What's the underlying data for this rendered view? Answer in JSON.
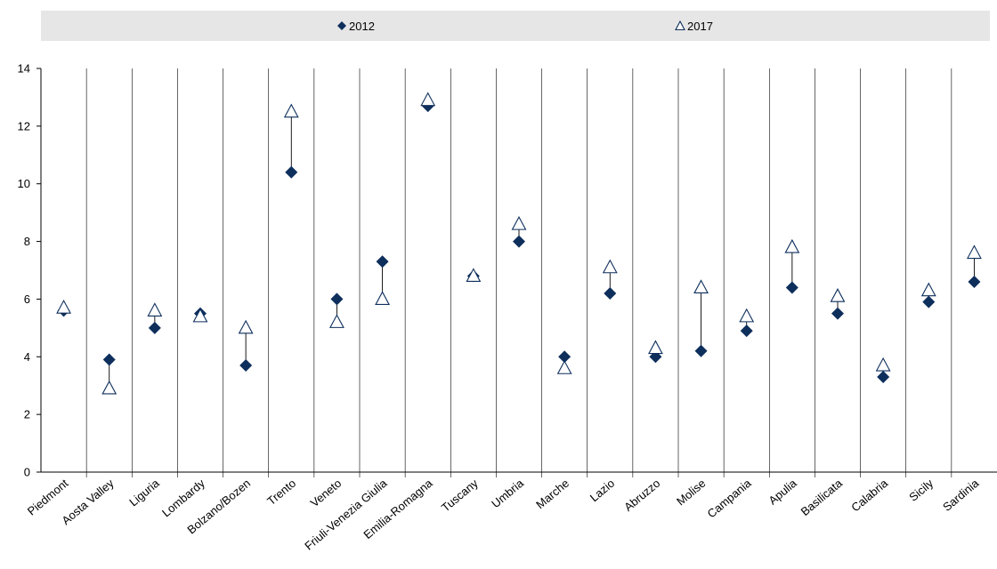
{
  "chart_data": {
    "type": "scatter",
    "title": "",
    "xlabel": "",
    "ylabel": "",
    "ylim": [
      0,
      14
    ],
    "yticks": [
      0,
      2,
      4,
      6,
      8,
      10,
      12,
      14
    ],
    "grid": false,
    "legend_position": "top",
    "categories": [
      "Piedmont",
      "Aosta Valley",
      "Liguria",
      "Lombardy",
      "Bolzano/Bozen",
      "Trento",
      "Veneto",
      "Friuli-Venezia Giulia",
      "Emilia-Romagna",
      "Tuscany",
      "Umbria",
      "Marche",
      "Lazio",
      "Abruzzo",
      "Molise",
      "Campania",
      "Apulia",
      "Basilicata",
      "Calabria",
      "Sicily",
      "Sardinia"
    ],
    "series": [
      {
        "name": "2012",
        "marker": "diamond",
        "color": "#0e2f5c",
        "values": [
          5.6,
          3.9,
          5.0,
          5.5,
          3.7,
          10.4,
          6.0,
          7.3,
          12.7,
          6.8,
          8.0,
          4.0,
          6.2,
          4.0,
          4.2,
          4.9,
          6.4,
          5.5,
          3.3,
          5.9,
          6.6
        ]
      },
      {
        "name": "2017",
        "marker": "triangle-open",
        "color": "#0e2f5c",
        "values": [
          5.7,
          2.9,
          5.6,
          5.4,
          5.0,
          12.5,
          5.2,
          6.0,
          12.9,
          6.8,
          8.6,
          3.6,
          7.1,
          4.3,
          6.4,
          5.4,
          7.8,
          6.1,
          3.7,
          6.3,
          7.6
        ]
      }
    ]
  }
}
